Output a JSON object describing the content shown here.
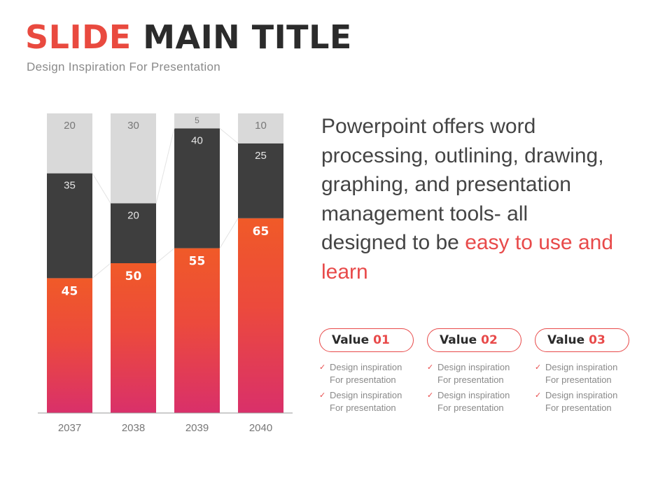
{
  "header": {
    "title_part1": "SLIDE",
    "title_part2": "MAIN TITLE",
    "subtitle": "Design Inspiration For Presentation"
  },
  "description": {
    "text": "Powerpoint offers word processing, outlining, drawing, graphing, and presentation management tools- all designed to be",
    "highlight": "easy to use and learn"
  },
  "values": [
    {
      "word": "Value",
      "num": "01",
      "items": [
        "Design inspiration For presentation",
        "Design inspiration For presentation"
      ]
    },
    {
      "word": "Value",
      "num": "02",
      "items": [
        "Design inspiration For presentation",
        "Design inspiration For presentation"
      ]
    },
    {
      "word": "Value",
      "num": "03",
      "items": [
        "Design inspiration For presentation",
        "Design inspiration For presentation"
      ]
    }
  ],
  "colors": {
    "accent": "#e84a4a",
    "dark_segment": "#3e3e3e",
    "light_segment": "#d9d9d9",
    "orange": "#f05a28",
    "pink": "#d9306a"
  },
  "chart_data": {
    "type": "bar",
    "stacked": true,
    "categories": [
      "2037",
      "2038",
      "2039",
      "2040"
    ],
    "series": [
      {
        "values": [
          45,
          50,
          55,
          65
        ]
      },
      {
        "values": [
          35,
          20,
          40,
          25
        ]
      },
      {
        "values": [
          20,
          30,
          5,
          10
        ]
      }
    ],
    "ylim": [
      0,
      100
    ],
    "grid": false,
    "legend": "none"
  }
}
